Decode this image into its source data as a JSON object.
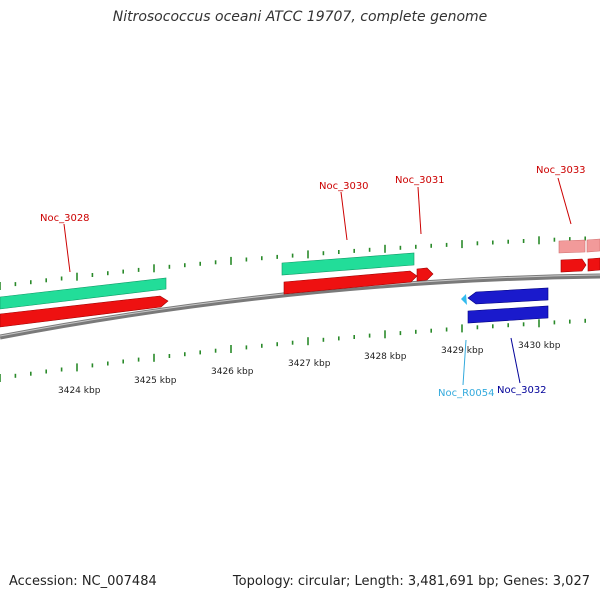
{
  "title": "Nitrosococcus oceani ATCC 19707, complete genome",
  "accession": "Accession: NC_007484",
  "summary": "Topology: circular; Length: 3,481,691 bp; Genes: 3,027",
  "colors": {
    "backbone": "#7a7a7a",
    "forward_cds": "#ee1111",
    "forward_gene": "#22dd99",
    "reverse_cds": "#1a1acc",
    "rna": "#33bbee",
    "faded_cds": "#f29a9a",
    "tick": "#2a8a2a",
    "label_forward": "#cc0000",
    "label_reverse": "#000099",
    "label_rna": "#33aadd"
  },
  "scale_labels": [
    "3424 kbp",
    "3425 kbp",
    "3426 kbp",
    "3427 kbp",
    "3428 kbp",
    "3429 kbp",
    "3430 kbp"
  ],
  "features": [
    {
      "label": "Noc_3028",
      "strand": "forward",
      "kind": "cds"
    },
    {
      "label": "Noc_3030",
      "strand": "forward",
      "kind": "cds"
    },
    {
      "label": "Noc_3031",
      "strand": "forward",
      "kind": "cds"
    },
    {
      "label": "Noc_3033",
      "strand": "forward",
      "kind": "cds"
    },
    {
      "label": "Noc_R0054",
      "strand": "reverse",
      "kind": "rna"
    },
    {
      "label": "Noc_3032",
      "strand": "reverse",
      "kind": "cds"
    }
  ]
}
